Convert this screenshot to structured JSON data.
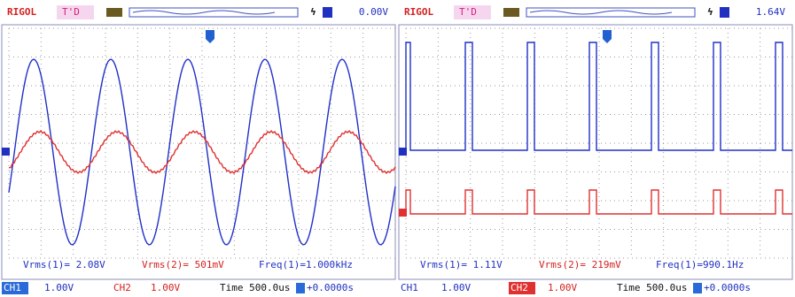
{
  "panels": [
    {
      "header": {
        "brand": "RIGOL",
        "mode": "T'D",
        "trigger_level": "0.00V"
      },
      "measurements": [
        "Vrms(1)= 2.08V",
        "Vrms(2)= 501mV",
        "Freq(1)=1.000kHz"
      ],
      "status": {
        "ch1_label": "CH1",
        "ch1_scale": "1.00V",
        "ch2_label": "CH2",
        "ch2_scale": "1.00V",
        "timebase": "Time 500.0us",
        "offset": "+0.0000s"
      }
    },
    {
      "header": {
        "brand": "RIGOL",
        "mode": "T'D",
        "trigger_level": "1.64V"
      },
      "measurements": [
        "Vrms(1)= 1.11V",
        "Vrms(2)= 219mV",
        "Freq(1)=990.1Hz"
      ],
      "status": {
        "ch1_label": "CH1",
        "ch1_scale": "1.00V",
        "ch2_label": "CH2",
        "ch2_scale": "1.00V",
        "timebase": "Time 500.0us",
        "offset": "+0.0000s"
      }
    }
  ]
}
